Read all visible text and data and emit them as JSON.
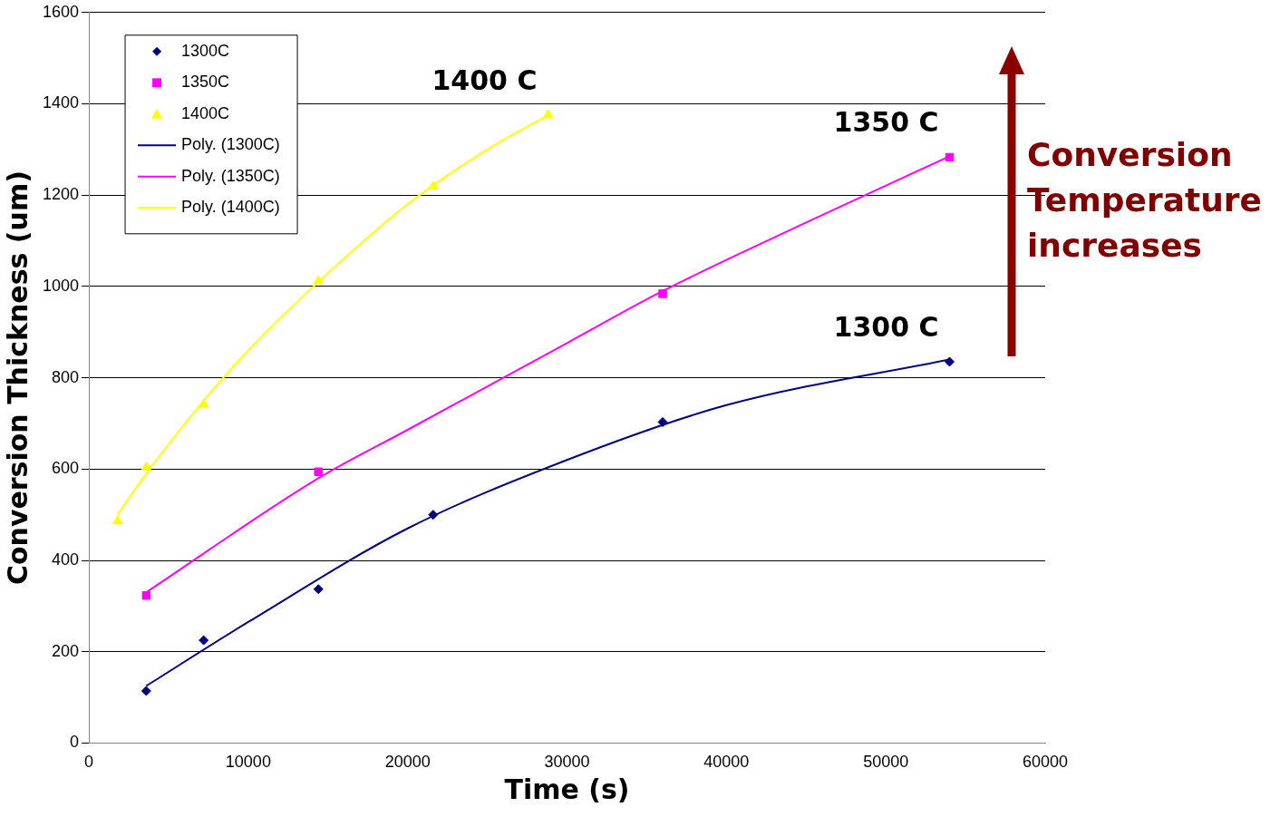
{
  "chart_data": {
    "type": "scatter",
    "xlabel": "Time (s)",
    "ylabel": "Conversion Thickness (um)",
    "xlim": [
      0,
      60000
    ],
    "xticks": [
      0,
      10000,
      20000,
      30000,
      40000,
      50000,
      60000
    ],
    "ylim": [
      0,
      1600
    ],
    "yticks": [
      0,
      200,
      400,
      600,
      800,
      1000,
      1200,
      1400,
      1600
    ],
    "grid": "y",
    "legend": "top left",
    "series": [
      {
        "name": "1300C",
        "type": "scatter",
        "marker": "diamond",
        "color": "#000080",
        "x": [
          3600,
          7200,
          14400,
          21600,
          36000,
          54000
        ],
        "values": [
          114,
          225,
          337,
          500,
          703,
          835
        ]
      },
      {
        "name": "1350C",
        "type": "scatter",
        "marker": "square",
        "color": "#ff00ff",
        "x": [
          3600,
          14400,
          36000,
          54000
        ],
        "values": [
          323,
          594,
          984,
          1283
        ]
      },
      {
        "name": "1400C",
        "type": "scatter",
        "marker": "triangle",
        "color": "#ffff00",
        "x": [
          1800,
          3600,
          7200,
          14400,
          21600,
          28800
        ],
        "values": [
          486,
          604,
          741,
          1012,
          1219,
          1375
        ]
      },
      {
        "name": "Poly. (1300C)",
        "type": "line",
        "marker": "none",
        "color": "#000080",
        "x": [
          3600,
          10000,
          20000,
          30000,
          40000,
          54000
        ],
        "values": [
          125,
          265,
          470,
          620,
          740,
          840
        ]
      },
      {
        "name": "Poly. (1350C)",
        "type": "line",
        "marker": "none",
        "color": "#ff00ff",
        "x": [
          3600,
          14400,
          20000,
          30000,
          36000,
          45000,
          54000
        ],
        "values": [
          330,
          580,
          686,
          876,
          990,
          1140,
          1285
        ]
      },
      {
        "name": "Poly. (1400C)",
        "type": "line",
        "marker": "none",
        "color": "#ffff00",
        "x": [
          1800,
          3600,
          7200,
          10000,
          14400,
          20000,
          25000,
          28800
        ],
        "values": [
          500,
          590,
          750,
          860,
          1010,
          1180,
          1300,
          1375
        ]
      }
    ],
    "annotations": [
      "1300 C",
      "1350 C",
      "1400 C",
      "Conversion Temperature increases"
    ]
  }
}
